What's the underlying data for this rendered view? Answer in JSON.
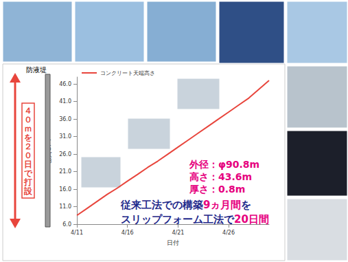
{
  "chart_data": {
    "type": "line",
    "x_label": "日付",
    "y_label": "標高OP+",
    "categories": [
      "4/11",
      null,
      null,
      null,
      null,
      "4/16",
      null,
      null,
      null,
      null,
      "4/21",
      null,
      null,
      null,
      null,
      "4/26",
      null,
      null,
      null,
      null
    ],
    "series": [
      {
        "name": "コンクリート天端高さ",
        "color": "#e8453c",
        "values": [
          8.5,
          10.5,
          12.5,
          14.5,
          16.3,
          18.3,
          20.2,
          22.2,
          24.0,
          26.0,
          28.0,
          30.0,
          32.0,
          34.0,
          36.0,
          38.0,
          40.0,
          42.0,
          44.5,
          47.0
        ]
      }
    ],
    "ylim": [
      6,
      48
    ],
    "yticks": [
      {
        "value": 6,
        "label": "6.0"
      },
      {
        "value": 11,
        "label": "11.0"
      },
      {
        "value": 16,
        "label": "16.0"
      },
      {
        "value": 21,
        "label": "21.0"
      },
      {
        "value": 26,
        "label": "26.0"
      },
      {
        "value": 31,
        "label": "31.0"
      },
      {
        "value": 36,
        "label": "36.0"
      },
      {
        "value": 41,
        "label": "41.0"
      },
      {
        "value": 46,
        "label": "46.0"
      }
    ],
    "legend": "upper left",
    "grid": false,
    "annotations": [
      {
        "text": "防液堤"
      },
      {
        "text": "４０ｍを２０日で打設"
      },
      {
        "text": "外径：φ90.8m"
      },
      {
        "text": "高さ：43.6m"
      },
      {
        "text": "厚さ：0.8m"
      },
      {
        "text": "従来工法での構築9ヵ月間を",
        "highlight": "9ヵ月間"
      },
      {
        "text": "スリップフォーム工法で20日間",
        "highlight": "20日間"
      }
    ]
  }
}
